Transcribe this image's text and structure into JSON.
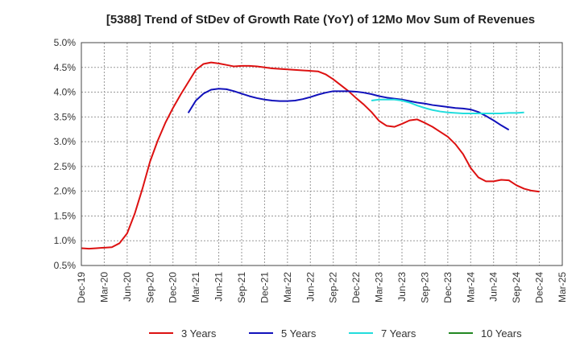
{
  "chart_data": {
    "type": "line",
    "title": "[5388]  Trend of StDev of Growth Rate (YoY) of 12Mo Mov Sum of Revenues",
    "xlabel": "",
    "ylabel": "",
    "ylim": [
      0.5,
      5.0
    ],
    "y_ticks": [
      "0.5%",
      "1.0%",
      "1.5%",
      "2.0%",
      "2.5%",
      "3.0%",
      "3.5%",
      "4.0%",
      "4.5%",
      "5.0%"
    ],
    "x_ticks": [
      "Dec-19",
      "Mar-20",
      "Jun-20",
      "Sep-20",
      "Dec-20",
      "Mar-21",
      "Jun-21",
      "Sep-21",
      "Dec-21",
      "Mar-22",
      "Jun-22",
      "Sep-22",
      "Dec-22",
      "Mar-23",
      "Jun-23",
      "Sep-23",
      "Dec-23",
      "Mar-24",
      "Jun-24",
      "Sep-24",
      "Dec-24",
      "Mar-25"
    ],
    "grid": true,
    "legend_position": "bottom",
    "series": [
      {
        "name": "3 Years",
        "color": "#dd1111",
        "start_index": 0,
        "values": [
          0.85,
          0.84,
          0.85,
          0.86,
          0.87,
          0.95,
          1.15,
          1.55,
          2.05,
          2.6,
          3.02,
          3.38,
          3.68,
          3.95,
          4.2,
          4.45,
          4.57,
          4.6,
          4.58,
          4.55,
          4.52,
          4.53,
          4.53,
          4.52,
          4.5,
          4.48,
          4.47,
          4.46,
          4.45,
          4.44,
          4.43,
          4.42,
          4.36,
          4.26,
          4.14,
          4.02,
          3.88,
          3.75,
          3.6,
          3.42,
          3.32,
          3.3,
          3.36,
          3.43,
          3.45,
          3.38,
          3.3,
          3.2,
          3.1,
          2.95,
          2.75,
          2.47,
          2.28,
          2.2,
          2.2,
          2.23,
          2.22,
          2.12,
          2.05,
          2.01,
          1.99
        ]
      },
      {
        "name": "5 Years",
        "color": "#1111bb",
        "start_index": 14,
        "values": [
          3.58,
          3.83,
          3.97,
          4.05,
          4.07,
          4.06,
          4.02,
          3.97,
          3.92,
          3.88,
          3.85,
          3.83,
          3.82,
          3.82,
          3.83,
          3.86,
          3.9,
          3.95,
          3.99,
          4.02,
          4.02,
          4.02,
          4.01,
          3.99,
          3.96,
          3.92,
          3.89,
          3.87,
          3.85,
          3.82,
          3.79,
          3.77,
          3.74,
          3.72,
          3.7,
          3.68,
          3.67,
          3.65,
          3.6,
          3.52,
          3.43,
          3.33,
          3.24
        ]
      },
      {
        "name": "7 Years",
        "color": "#22dddd",
        "start_index": 38,
        "values": [
          3.83,
          3.85,
          3.85,
          3.85,
          3.83,
          3.79,
          3.73,
          3.68,
          3.64,
          3.61,
          3.59,
          3.58,
          3.57,
          3.57,
          3.57,
          3.57,
          3.57,
          3.57,
          3.58,
          3.58,
          3.59
        ]
      },
      {
        "name": "10 Years",
        "color": "#228822",
        "start_index": 0,
        "values": []
      }
    ]
  }
}
